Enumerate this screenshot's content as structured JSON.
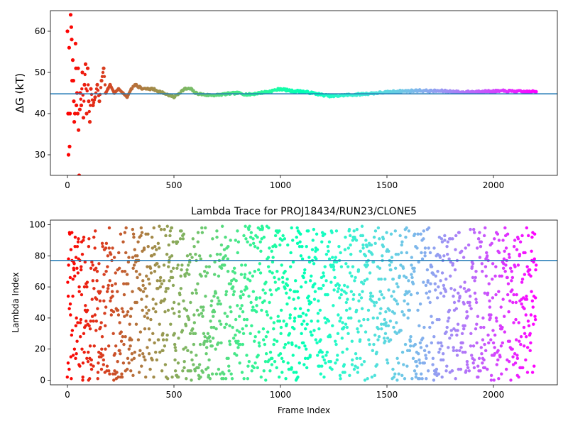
{
  "chart_data": [
    {
      "type": "scatter",
      "title": "",
      "xlabel": "",
      "ylabel": "ΔG (kT)",
      "xlim": [
        -80,
        2300
      ],
      "ylim": [
        25,
        65
      ],
      "xticks": [
        0,
        500,
        1000,
        1500,
        2000
      ],
      "yticks": [
        30,
        40,
        50,
        60
      ],
      "hline": 44.8,
      "colormap": "rainbow (red at frame 0 → violet at frame 2200)",
      "x_range": [
        0,
        2200
      ],
      "series": [
        {
          "description": "ΔG estimate per frame",
          "points": [
            [
              0,
              60
            ],
            [
              3,
              40
            ],
            [
              5,
              30
            ],
            [
              8,
              56
            ],
            [
              10,
              32
            ],
            [
              12,
              40
            ],
            [
              15,
              64
            ],
            [
              18,
              61
            ],
            [
              20,
              58
            ],
            [
              22,
              48
            ],
            [
              25,
              53
            ],
            [
              28,
              48
            ],
            [
              30,
              43
            ],
            [
              32,
              38
            ],
            [
              35,
              40
            ],
            [
              38,
              57
            ],
            [
              40,
              51
            ],
            [
              42,
              42
            ],
            [
              45,
              45
            ],
            [
              48,
              40
            ],
            [
              50,
              51
            ],
            [
              52,
              36
            ],
            [
              55,
              25
            ],
            [
              58,
              41
            ],
            [
              60,
              45
            ],
            [
              65,
              42
            ],
            [
              70,
              50
            ],
            [
              75,
              39
            ],
            [
              80,
              47
            ],
            [
              85,
              52
            ],
            [
              90,
              40
            ],
            [
              95,
              51
            ],
            [
              100,
              43
            ],
            [
              105,
              38
            ],
            [
              110,
              46
            ],
            [
              120,
              42
            ],
            [
              130,
              44
            ],
            [
              140,
              47
            ],
            [
              150,
              43
            ],
            [
              160,
              48
            ],
            [
              170,
              51
            ],
            [
              180,
              45
            ],
            [
              190,
              46
            ],
            [
              200,
              47
            ],
            [
              220,
              45
            ],
            [
              240,
              46
            ],
            [
              260,
              45
            ],
            [
              280,
              44
            ],
            [
              300,
              46
            ],
            [
              320,
              47
            ],
            [
              350,
              46
            ],
            [
              380,
              46
            ],
            [
              400,
              46
            ],
            [
              450,
              45
            ],
            [
              500,
              44
            ],
            [
              550,
              46
            ],
            [
              580,
              46
            ],
            [
              600,
              45
            ],
            [
              650,
              44.5
            ],
            [
              700,
              44.5
            ],
            [
              750,
              44.8
            ],
            [
              800,
              45
            ],
            [
              850,
              44.6
            ],
            [
              900,
              45
            ],
            [
              950,
              45.4
            ],
            [
              1000,
              46
            ],
            [
              1050,
              45.5
            ],
            [
              1100,
              45.4
            ],
            [
              1150,
              45
            ],
            [
              1200,
              44.5
            ],
            [
              1250,
              44.2
            ],
            [
              1300,
              44.5
            ],
            [
              1350,
              44.6
            ],
            [
              1400,
              44.8
            ],
            [
              1450,
              45
            ],
            [
              1500,
              45.2
            ],
            [
              1550,
              45.4
            ],
            [
              1600,
              45.5
            ],
            [
              1650,
              45.6
            ],
            [
              1700,
              45.5
            ],
            [
              1750,
              45.5
            ],
            [
              1800,
              45.4
            ],
            [
              1850,
              45.2
            ],
            [
              1900,
              45.3
            ],
            [
              1950,
              45.4
            ],
            [
              2000,
              45.4
            ],
            [
              2050,
              45.5
            ],
            [
              2100,
              45.4
            ],
            [
              2150,
              45.3
            ],
            [
              2200,
              45.3
            ]
          ]
        }
      ]
    },
    {
      "type": "scatter",
      "title": "Lambda Trace for PROJ18434/RUN23/CLONE5",
      "xlabel": "Frame Index",
      "ylabel": "Lambda Index",
      "xlim": [
        -80,
        2300
      ],
      "ylim": [
        -3,
        103
      ],
      "xticks": [
        0,
        500,
        1000,
        1500,
        2000
      ],
      "yticks": [
        0,
        20,
        40,
        60,
        80,
        100
      ],
      "hline": 77,
      "colormap": "rainbow (red at frame 0 → violet at frame 2200)",
      "x_range": [
        0,
        2200
      ],
      "point_count": 1800,
      "value_range": [
        0,
        99
      ],
      "description": "Lambda index values scattered approximately uniformly between 0 and 99 across frames 0–2200"
    }
  ]
}
